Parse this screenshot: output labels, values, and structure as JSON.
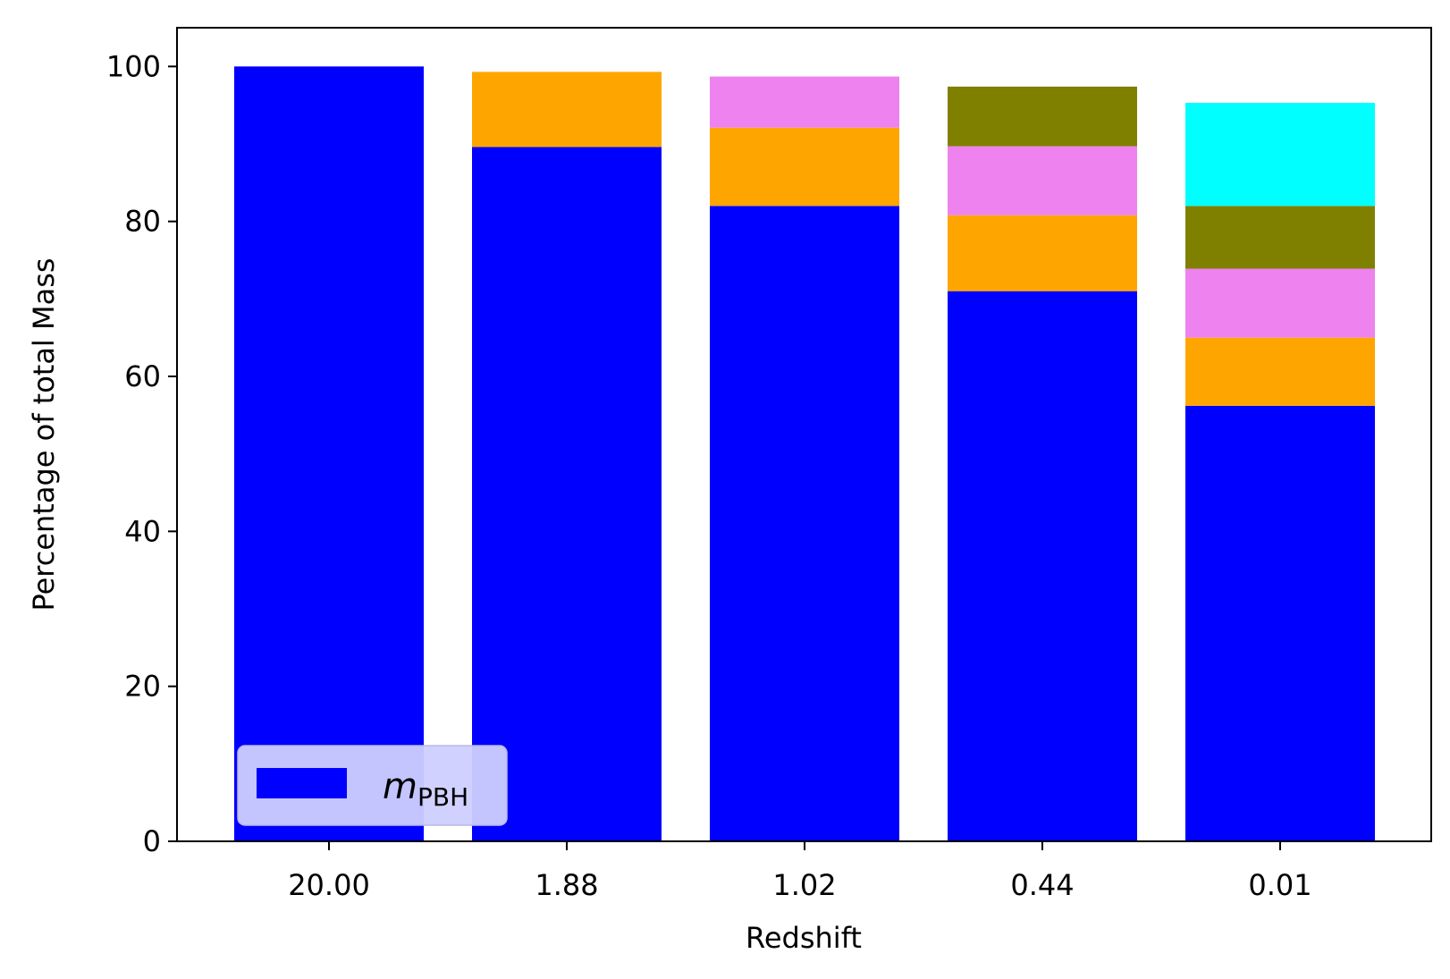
{
  "chart_data": {
    "type": "bar",
    "stacked": true,
    "categories": [
      "20.00",
      "1.88",
      "1.02",
      "0.44",
      "0.01"
    ],
    "xlabel": "Redshift",
    "ylabel": "Percentage of total Mass",
    "ylim": [
      0,
      105
    ],
    "yticks": [
      0,
      20,
      40,
      60,
      80,
      100
    ],
    "grid": false,
    "legend_position": "lower-left",
    "legend_entry": {
      "math": "m",
      "subscript": "PBH",
      "color": "#0000ff"
    },
    "series": [
      {
        "color": "#0000ff",
        "values": [
          100.0,
          89.6,
          82.0,
          71.0,
          56.2
        ]
      },
      {
        "color": "#ffa500",
        "values": [
          0,
          9.7,
          10.1,
          9.8,
          8.8
        ]
      },
      {
        "color": "#ee82ee",
        "values": [
          0,
          0,
          6.6,
          8.9,
          8.9
        ]
      },
      {
        "color": "#808000",
        "values": [
          0,
          0,
          0,
          7.7,
          8.1
        ]
      },
      {
        "color": "#00ffff",
        "values": [
          0,
          0,
          0,
          0,
          13.3
        ]
      }
    ]
  }
}
